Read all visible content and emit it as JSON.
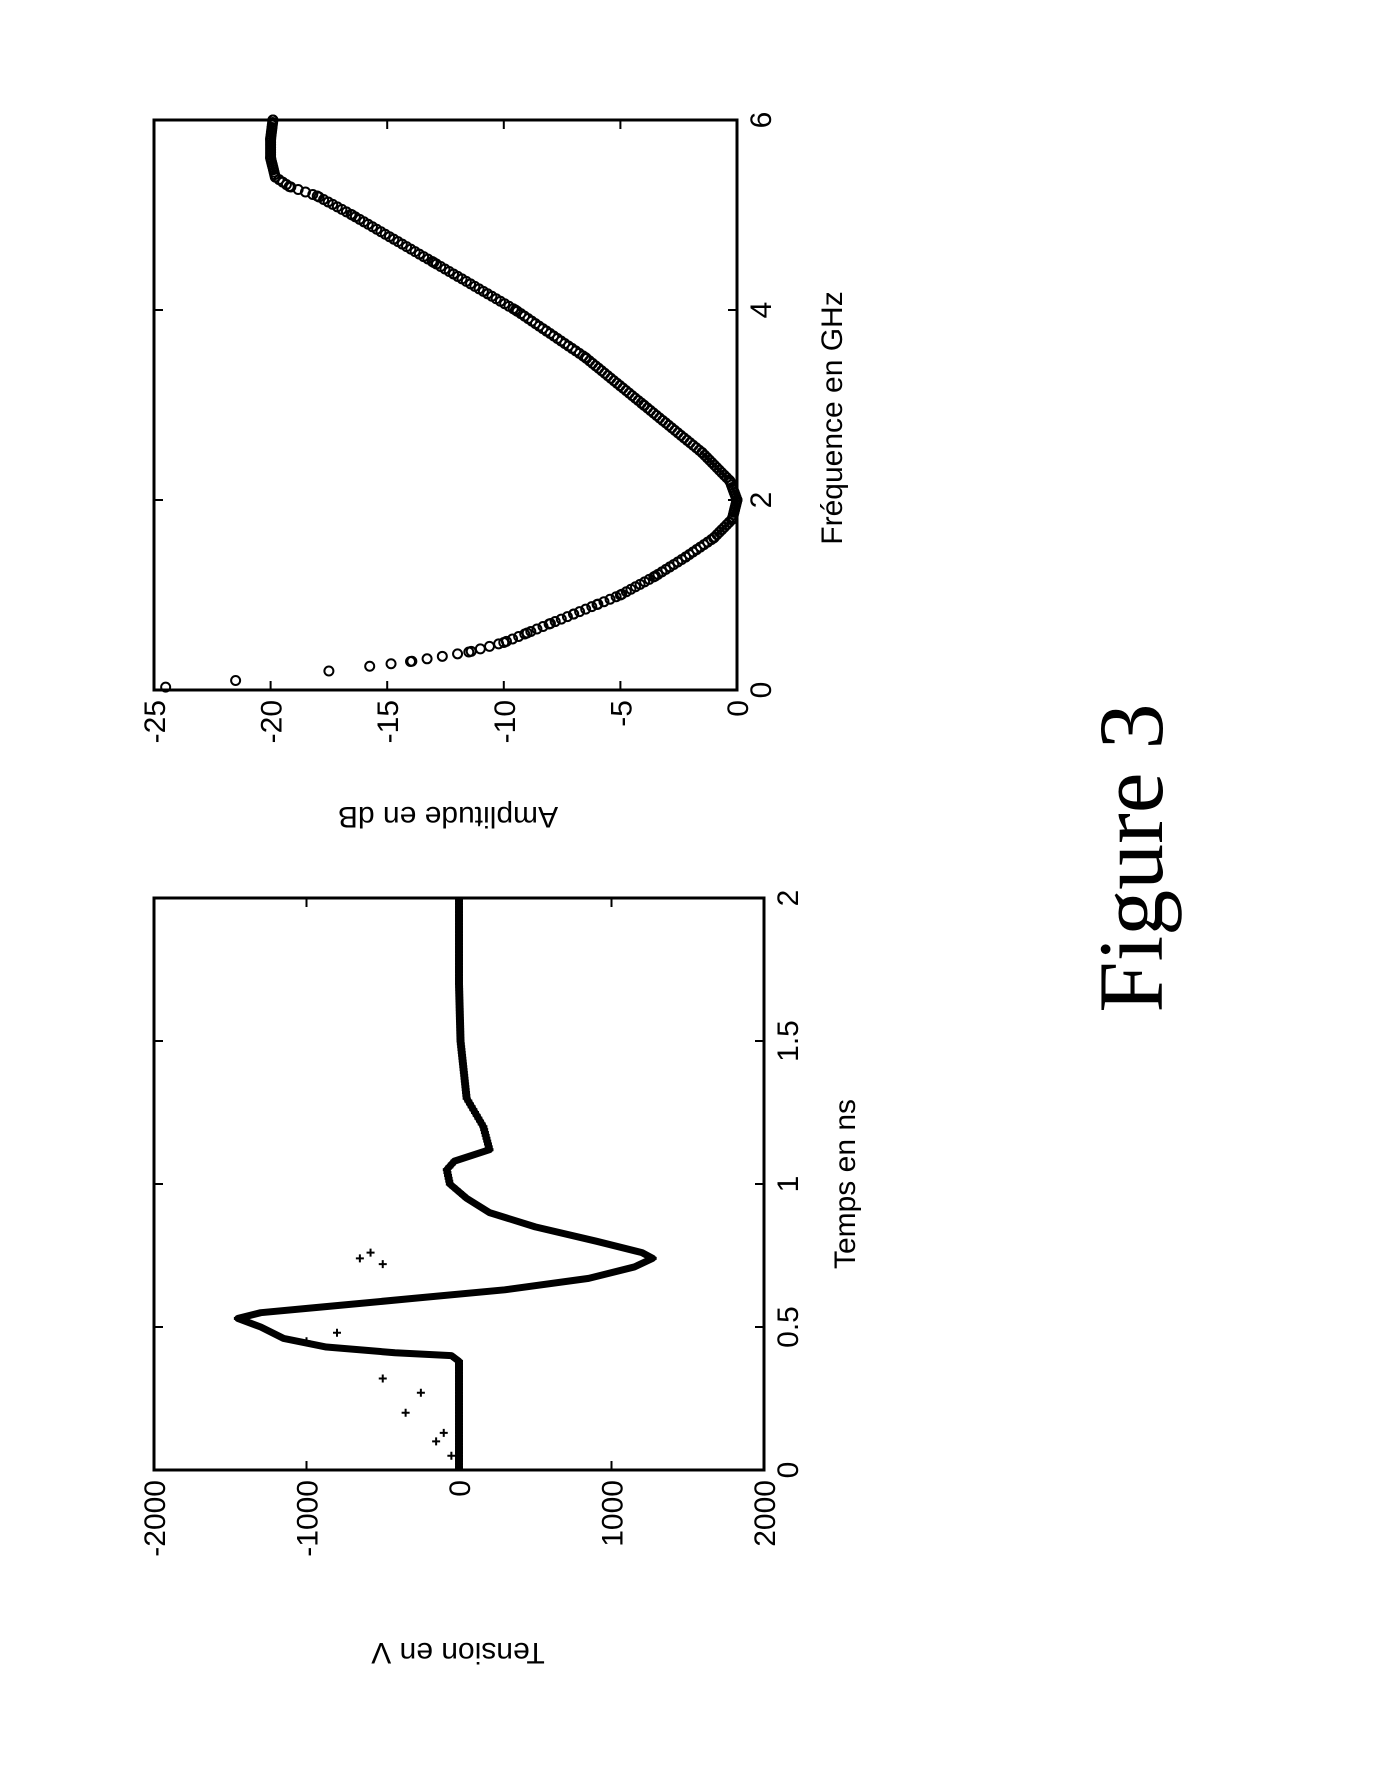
{
  "figure": {
    "caption": "Figure 3"
  },
  "chart_data": [
    {
      "id": "time",
      "type": "line",
      "xlabel": "Temps en ns",
      "ylabel": "Tension en V",
      "xlim": [
        0,
        2
      ],
      "ylim": [
        -2000,
        2000
      ],
      "xticks": [
        0,
        0.5,
        1,
        1.5,
        2
      ],
      "xtick_labels": [
        "0",
        "0.5",
        "1",
        "1.5",
        "2"
      ],
      "yticks": [
        -2000,
        -1000,
        0,
        1000,
        2000
      ],
      "ytick_labels": [
        "-2000",
        "-1000",
        "0",
        "1000",
        "2000"
      ],
      "grid": false,
      "orientation": "rotated 90° counter-clockwise on page",
      "series": [
        {
          "style": "dense markers",
          "x": [
            0,
            0.1,
            0.2,
            0.3,
            0.38,
            0.4,
            0.41,
            0.43,
            0.46,
            0.5,
            0.53,
            0.55,
            0.57,
            0.6,
            0.63,
            0.67,
            0.71,
            0.74,
            0.76,
            0.8,
            0.85,
            0.9,
            0.95,
            1.0,
            1.05,
            1.08,
            1.12,
            1.2,
            1.3,
            1.5,
            1.7,
            2.0
          ],
          "y": [
            0,
            0,
            0,
            0,
            0,
            -50,
            -420,
            -870,
            -1150,
            -1300,
            -1450,
            -1300,
            -900,
            -300,
            300,
            850,
            1150,
            1270,
            1200,
            900,
            500,
            200,
            50,
            -60,
            -80,
            -30,
            200,
            160,
            50,
            10,
            0,
            0
          ]
        },
        {
          "style": "sparse markers",
          "x": [
            0.05,
            0.1,
            0.13,
            0.2,
            0.27,
            0.32,
            0.45,
            0.48,
            0.72,
            0.74,
            0.76
          ],
          "y": [
            -50,
            -150,
            -100,
            -350,
            -250,
            -500,
            -1000,
            -800,
            -500,
            -650,
            -580
          ]
        }
      ]
    },
    {
      "id": "frequency",
      "type": "scatter",
      "xlabel": "Fréquence en GHz",
      "ylabel": "Amplitude en dB",
      "xlim": [
        0,
        6
      ],
      "ylim": [
        -25,
        0
      ],
      "xticks": [
        0,
        2,
        4,
        6
      ],
      "xtick_labels": [
        "0",
        "2",
        "4",
        "6"
      ],
      "yticks": [
        -25,
        -20,
        -15,
        -10,
        -5,
        0
      ],
      "ytick_labels": [
        "-25",
        "-20",
        "-15",
        "-10",
        "-5",
        "0"
      ],
      "grid": false,
      "orientation": "rotated 90° counter-clockwise on page",
      "series": [
        {
          "style": "open circle markers",
          "x": [
            0.03,
            0.1,
            0.2,
            0.3,
            0.4,
            0.5,
            0.6,
            0.7,
            0.8,
            0.9,
            1.0,
            1.2,
            1.4,
            1.6,
            1.8,
            2.0,
            2.2,
            2.5,
            3.0,
            3.5,
            4.0,
            4.5,
            5.0,
            5.2,
            5.3,
            5.4,
            5.6,
            5.8,
            6.0
          ],
          "y": [
            -24.5,
            -21.5,
            -17.5,
            -14,
            -11.5,
            -10,
            -9,
            -8,
            -7,
            -6,
            -5,
            -3.5,
            -2.2,
            -1,
            -0.2,
            0,
            -0.3,
            -1.5,
            -4,
            -6.5,
            -9.5,
            -13,
            -16.5,
            -18,
            -19.2,
            -19.8,
            -20,
            -20,
            -19.9
          ]
        }
      ]
    }
  ]
}
